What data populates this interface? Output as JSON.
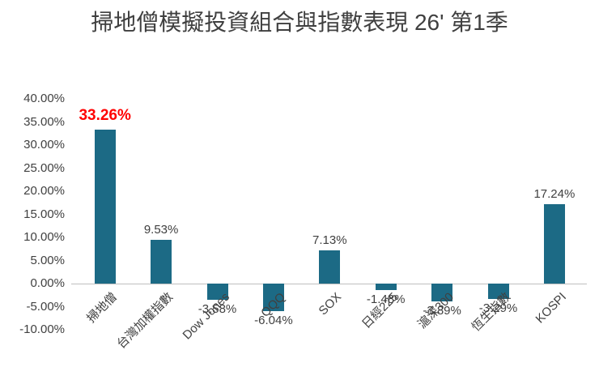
{
  "title": "掃地僧模擬投資組合與指數表現 26' 第1季",
  "chart_data": {
    "type": "bar",
    "title": "掃地僧模擬投資組合與指數表現 26' 第1季",
    "categories": [
      "掃地僧",
      "台灣加權指數",
      "Dow Jones",
      "QQQ",
      "SOX",
      "日經225",
      "滬深300",
      "恆生指數",
      "KOSPI"
    ],
    "values": [
      33.26,
      9.53,
      -3.58,
      -6.04,
      7.13,
      -1.48,
      -3.89,
      -3.29,
      17.24
    ],
    "value_labels": [
      "33.26%",
      "9.53%",
      "-3.58%",
      "-6.04%",
      "7.13%",
      "-1.48%",
      "-3.89%",
      "-3.29%",
      "17.24%"
    ],
    "highlight": {
      "index": 0,
      "color": "#FF0000"
    },
    "bar_color": "#1C6A85",
    "label_color": "#404040",
    "axis_color": "#BFBFBF",
    "ylim": [
      -10,
      40
    ],
    "ytick_step": 5,
    "ytick_labels": [
      "40.00%",
      "35.00%",
      "30.00%",
      "25.00%",
      "20.00%",
      "15.00%",
      "10.00%",
      "5.00%",
      "0.00%",
      "-5.00%",
      "-10.00%"
    ],
    "grid": false,
    "legend": false,
    "xlabel": "",
    "ylabel": ""
  }
}
